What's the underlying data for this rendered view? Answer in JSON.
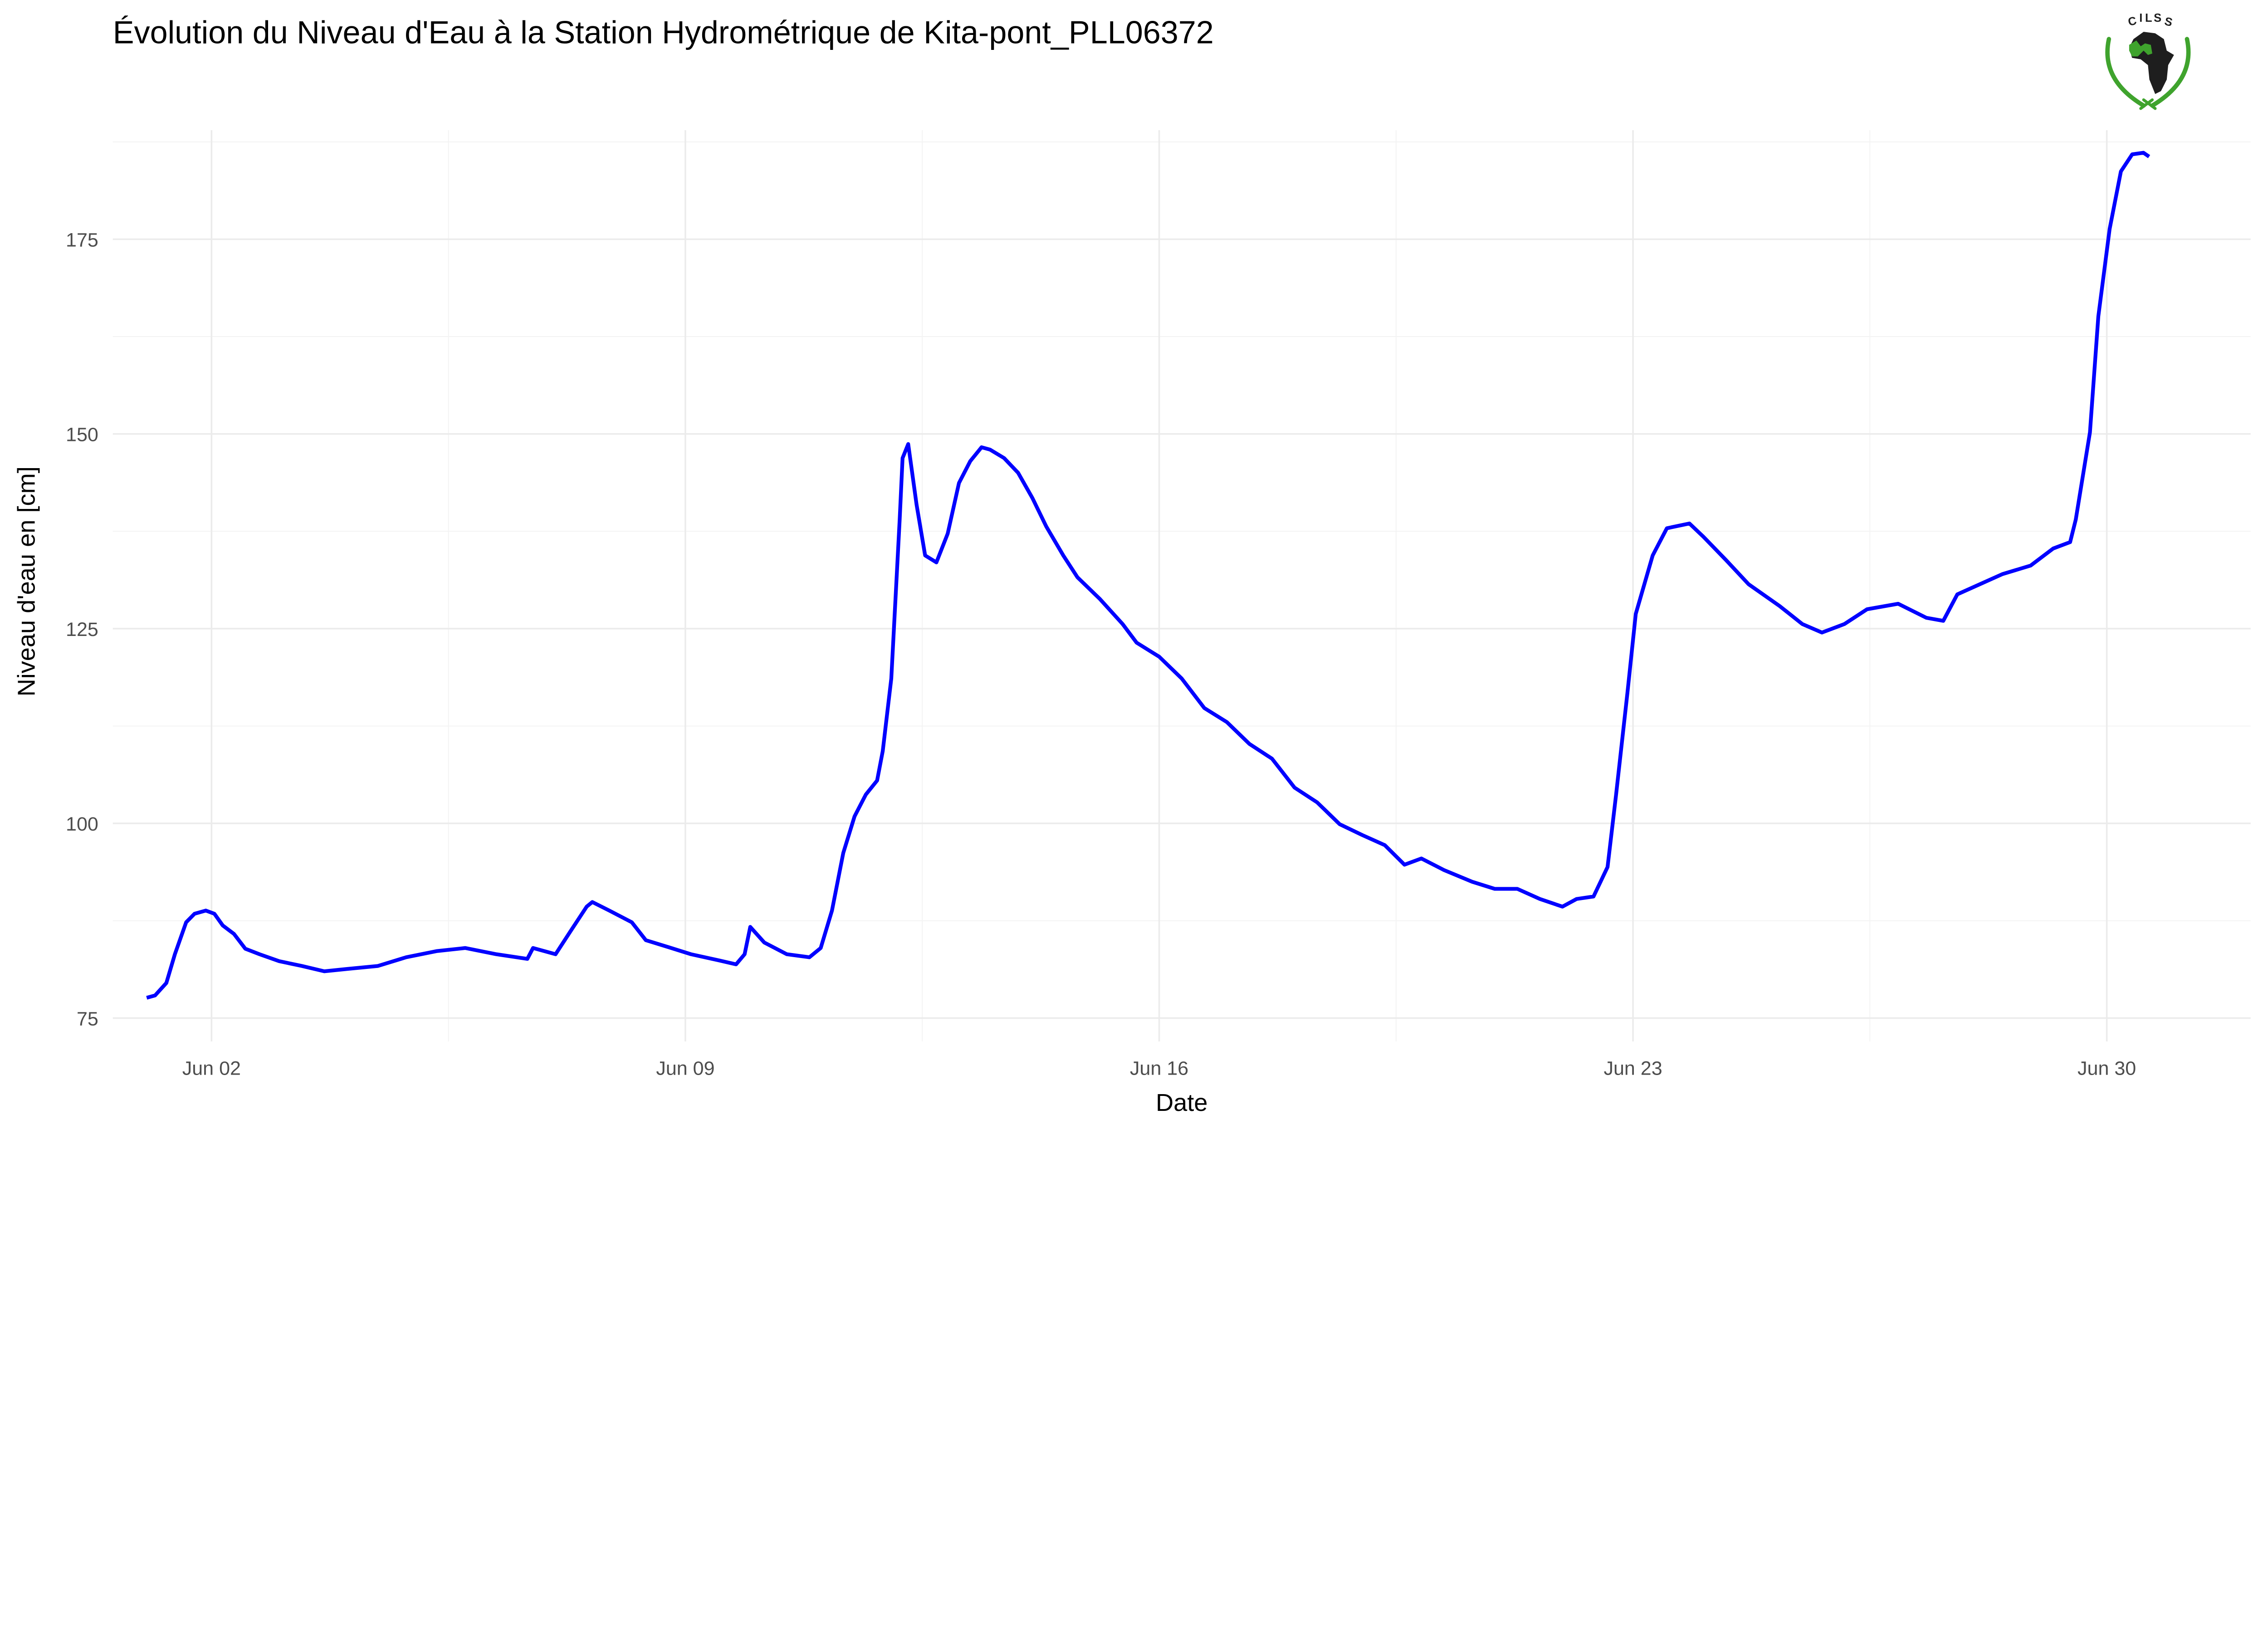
{
  "chart_data": {
    "type": "line",
    "title": "Évolution du Niveau d'Eau à la Station Hydrométrique de Kita-pont_PLL06372",
    "xlabel": "Date",
    "ylabel": "Niveau d'eau en [cm]",
    "x_ticks": [
      "Jun 02",
      "Jun 09",
      "Jun 16",
      "Jun 23",
      "Jun 30"
    ],
    "y_ticks": [
      75,
      100,
      125,
      150,
      175
    ],
    "xlim": [
      "May 31 13:00",
      "Jul 02 03:00"
    ],
    "ylim": [
      72,
      189
    ],
    "grid": true,
    "line_color": "#0000ff",
    "logo_text": "CILSS",
    "series": [
      {
        "x": [
          "Jun 01 01:00",
          "Jun 01 04:00",
          "Jun 01 08:00",
          "Jun 01 11:00",
          "Jun 01 15:00",
          "Jun 01 18:00",
          "Jun 01 22:00",
          "Jun 02 01:00",
          "Jun 02 04:00",
          "Jun 02 08:00",
          "Jun 02 12:00",
          "Jun 02 17:00",
          "Jun 03 00:00",
          "Jun 03 08:00",
          "Jun 03 16:00",
          "Jun 04 00:00",
          "Jun 04 11:00",
          "Jun 04 21:00",
          "Jun 05 08:00",
          "Jun 05 18:00",
          "Jun 06 05:00",
          "Jun 06 16:00",
          "Jun 06 18:00",
          "Jun 07 02:00",
          "Jun 07 07:00",
          "Jun 07 13:00",
          "Jun 07 15:00",
          "Jun 07 21:00",
          "Jun 08 05:00",
          "Jun 08 10:00",
          "Jun 08 18:00",
          "Jun 09 02:00",
          "Jun 09 12:00",
          "Jun 09 18:00",
          "Jun 09 21:00",
          "Jun 09 23:00",
          "Jun 10 04:00",
          "Jun 10 12:00",
          "Jun 10 20:00",
          "Jun 11 00:00",
          "Jun 11 04:00",
          "Jun 11 08:00",
          "Jun 11 12:00",
          "Jun 11 16:00",
          "Jun 11 20:00",
          "Jun 11 22:00",
          "Jun 12 01:00",
          "Jun 12 04:00",
          "Jun 12 05:00",
          "Jun 12 07:00",
          "Jun 12 10:00",
          "Jun 12 13:00",
          "Jun 12 17:00",
          "Jun 12 21:00",
          "Jun 13 01:00",
          "Jun 13 05:00",
          "Jun 13 09:00",
          "Jun 13 12:00",
          "Jun 13 17:00",
          "Jun 13 22:00",
          "Jun 14 03:00",
          "Jun 14 08:00",
          "Jun 14 14:00",
          "Jun 14 19:00",
          "Jun 15 03:00",
          "Jun 15 11:00",
          "Jun 15 16:00",
          "Jun 16 00:00",
          "Jun 16 08:00",
          "Jun 16 16:00",
          "Jun 17 00:00",
          "Jun 17 08:00",
          "Jun 17 16:00",
          "Jun 18 00:00",
          "Jun 18 08:00",
          "Jun 18 16:00",
          "Jun 19 00:00",
          "Jun 19 08:00",
          "Jun 19 15:00",
          "Jun 19 21:00",
          "Jun 20 05:00",
          "Jun 20 15:00",
          "Jun 20 23:00",
          "Jun 21 07:00",
          "Jun 21 15:00",
          "Jun 21 23:00",
          "Jun 22 04:00",
          "Jun 22 10:00",
          "Jun 22 15:00",
          "Jun 22 18:00",
          "Jun 22 22:00",
          "Jun 23 01:00",
          "Jun 23 07:00",
          "Jun 23 12:00",
          "Jun 23 20:00",
          "Jun 24 01:00",
          "Jun 24 09:00",
          "Jun 24 17:00",
          "Jun 25 04:00",
          "Jun 25 12:00",
          "Jun 25 19:00",
          "Jun 26 03:00",
          "Jun 26 11:00",
          "Jun 26 22:00",
          "Jun 27 08:00",
          "Jun 27 14:00",
          "Jun 27 19:00",
          "Jun 28 03:00",
          "Jun 28 11:00",
          "Jun 28 21:00",
          "Jun 29 05:00",
          "Jun 29 11:00",
          "Jun 29 13:00",
          "Jun 29 18:00",
          "Jun 29 21:00",
          "Jun 30 01:00",
          "Jun 30 05:00",
          "Jun 30 09:00",
          "Jun 30 13:00",
          "Jun 30 15:00"
        ],
        "y": [
          77.6,
          77.9,
          79.5,
          83.2,
          87.3,
          88.4,
          88.8,
          88.4,
          86.9,
          85.8,
          83.9,
          83.2,
          82.3,
          81.7,
          81.0,
          81.3,
          81.7,
          82.8,
          83.6,
          84.0,
          83.2,
          82.6,
          84.0,
          83.2,
          86.0,
          89.3,
          89.9,
          88.8,
          87.3,
          85.0,
          84.1,
          83.2,
          82.4,
          81.9,
          83.2,
          86.7,
          84.7,
          83.2,
          82.8,
          84.0,
          88.8,
          96.2,
          100.9,
          103.7,
          105.5,
          109.3,
          118.6,
          139.0,
          146.9,
          148.7,
          140.9,
          134.4,
          133.5,
          137.2,
          143.7,
          146.5,
          148.3,
          148.0,
          146.9,
          145.0,
          141.8,
          138.1,
          134.4,
          131.6,
          128.8,
          125.6,
          123.2,
          121.4,
          118.6,
          114.8,
          113.0,
          110.2,
          108.3,
          104.6,
          102.7,
          99.9,
          98.5,
          97.2,
          94.7,
          95.5,
          94.0,
          92.5,
          91.6,
          91.6,
          90.3,
          89.3,
          90.3,
          90.6,
          94.4,
          103.7,
          116.7,
          126.9,
          134.4,
          137.9,
          138.5,
          136.8,
          133.8,
          130.7,
          127.9,
          125.6,
          124.5,
          125.6,
          127.5,
          128.2,
          126.4,
          126.0,
          129.4,
          130.7,
          132.0,
          133.1,
          135.3,
          136.1,
          139.0,
          150.2,
          165.1,
          176.3,
          183.7,
          185.9,
          186.1,
          185.6
        ]
      }
    ]
  }
}
